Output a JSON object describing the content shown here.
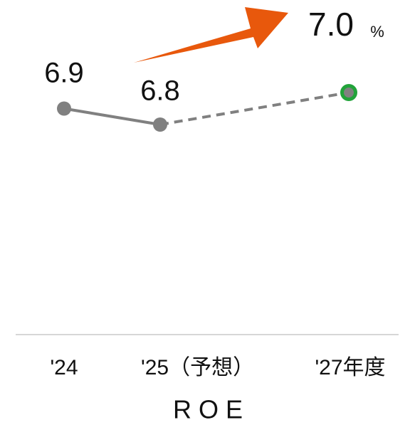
{
  "chart_data": {
    "type": "line",
    "title": "R O E",
    "categories": [
      "'24",
      "'25（予想）",
      "'27年度"
    ],
    "values": [
      6.9,
      6.8,
      7.0
    ],
    "value_labels": [
      "6.9",
      "6.8",
      "7.0"
    ],
    "unit": "%",
    "ylim": [
      6.8,
      7.0
    ],
    "color": "#808080",
    "highlight_color": "#22a33a",
    "dash_from": 1
  }
}
